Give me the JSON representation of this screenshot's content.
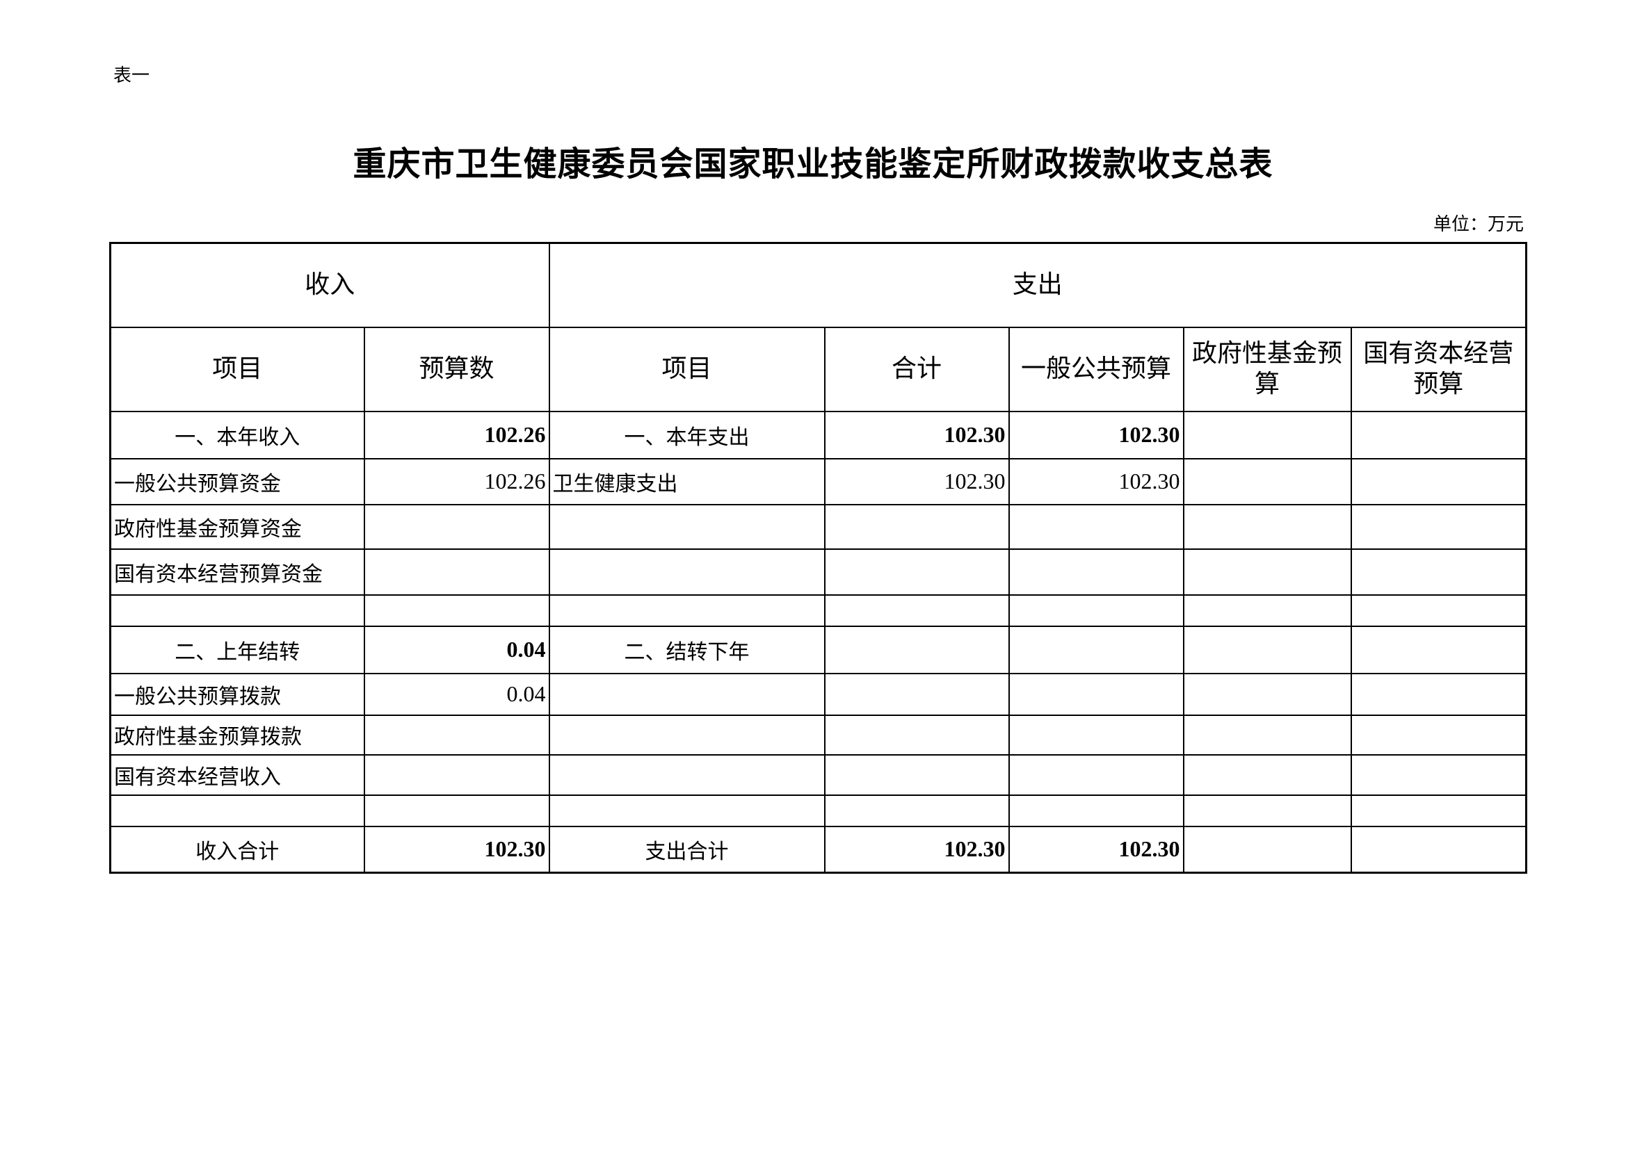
{
  "tag": "表一",
  "title": "重庆市卫生健康委员会国家职业技能鉴定所财政拨款收支总表",
  "unit": "单位：万元",
  "header": {
    "income": "收入",
    "expense": "支出",
    "columns": [
      "项目",
      "预算数",
      "项目",
      "合计",
      "一般公共预算",
      "政府性基金预算",
      "国有资本经营预算"
    ]
  },
  "rows": [
    {
      "type": "section",
      "cells": [
        "一、本年收入",
        "102.26",
        "一、本年支出",
        "102.30",
        "102.30",
        "",
        ""
      ]
    },
    {
      "type": "item",
      "cells": [
        "一般公共预算资金",
        "102.26",
        "卫生健康支出",
        "102.30",
        "102.30",
        "",
        ""
      ]
    },
    {
      "type": "item",
      "cells": [
        "政府性基金预算资金",
        "",
        "",
        "",
        "",
        "",
        ""
      ]
    },
    {
      "type": "item",
      "cells": [
        "国有资本经营预算资金",
        "",
        "",
        "",
        "",
        "",
        ""
      ]
    },
    {
      "type": "blank",
      "cells": [
        "",
        "",
        "",
        "",
        "",
        "",
        ""
      ]
    },
    {
      "type": "section",
      "cells": [
        "二、上年结转",
        "0.04",
        "二、结转下年",
        "",
        "",
        "",
        ""
      ]
    },
    {
      "type": "item",
      "cells": [
        "一般公共预算拨款",
        "0.04",
        "",
        "",
        "",
        "",
        ""
      ]
    },
    {
      "type": "item",
      "cells": [
        "政府性基金预算拨款",
        "",
        "",
        "",
        "",
        "",
        ""
      ]
    },
    {
      "type": "item",
      "cells": [
        "国有资本经营收入",
        "",
        "",
        "",
        "",
        "",
        ""
      ]
    },
    {
      "type": "blank",
      "cells": [
        "",
        "",
        "",
        "",
        "",
        "",
        ""
      ]
    },
    {
      "type": "section",
      "cells": [
        "收入合计",
        "102.30",
        "支出合计",
        "102.30",
        "102.30",
        "",
        ""
      ]
    }
  ]
}
